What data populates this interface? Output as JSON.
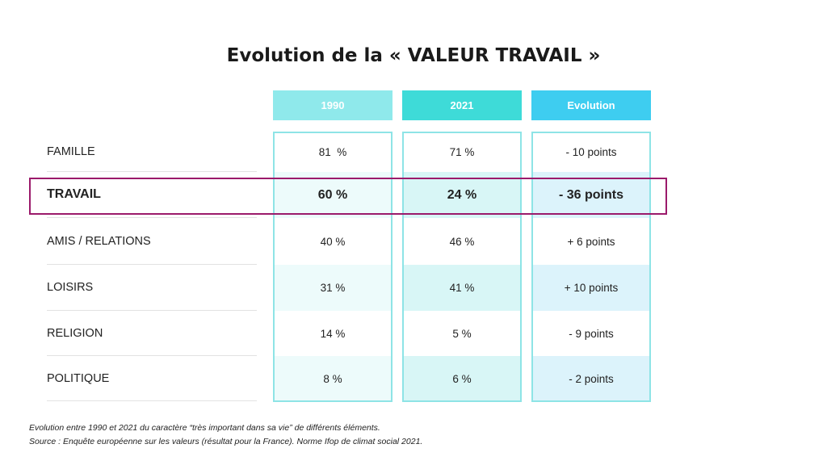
{
  "title": "Evolution de la « VALEUR TRAVAIL »",
  "table": {
    "columns": [
      "1990",
      "2021",
      "Evolution"
    ],
    "rows": [
      {
        "label": "FAMILLE",
        "cells": [
          "81  %",
          "71 %",
          "- 10 points"
        ]
      },
      {
        "label": "TRAVAIL",
        "cells": [
          "60 %",
          "24 %",
          "- 36 points"
        ]
      },
      {
        "label": "AMIS / RELATIONS",
        "cells": [
          "40 %",
          "46 %",
          "+ 6 points"
        ]
      },
      {
        "label": "LOISIRS",
        "cells": [
          "31 %",
          "41 %",
          "+ 10 points"
        ]
      },
      {
        "label": "RELIGION",
        "cells": [
          "14 %",
          "5 %",
          "- 9 points"
        ]
      },
      {
        "label": "POLITIQUE",
        "cells": [
          "8 %",
          "6 %",
          "- 2 points"
        ]
      }
    ]
  },
  "footnotes": [
    "Evolution entre 1990 et 2021 du caractère “très important dans sa vie” de différents éléments.",
    "Source : Enquête européenne sur les valeurs (résultat pour la France). Norme Ifop de climat social 2021."
  ]
}
